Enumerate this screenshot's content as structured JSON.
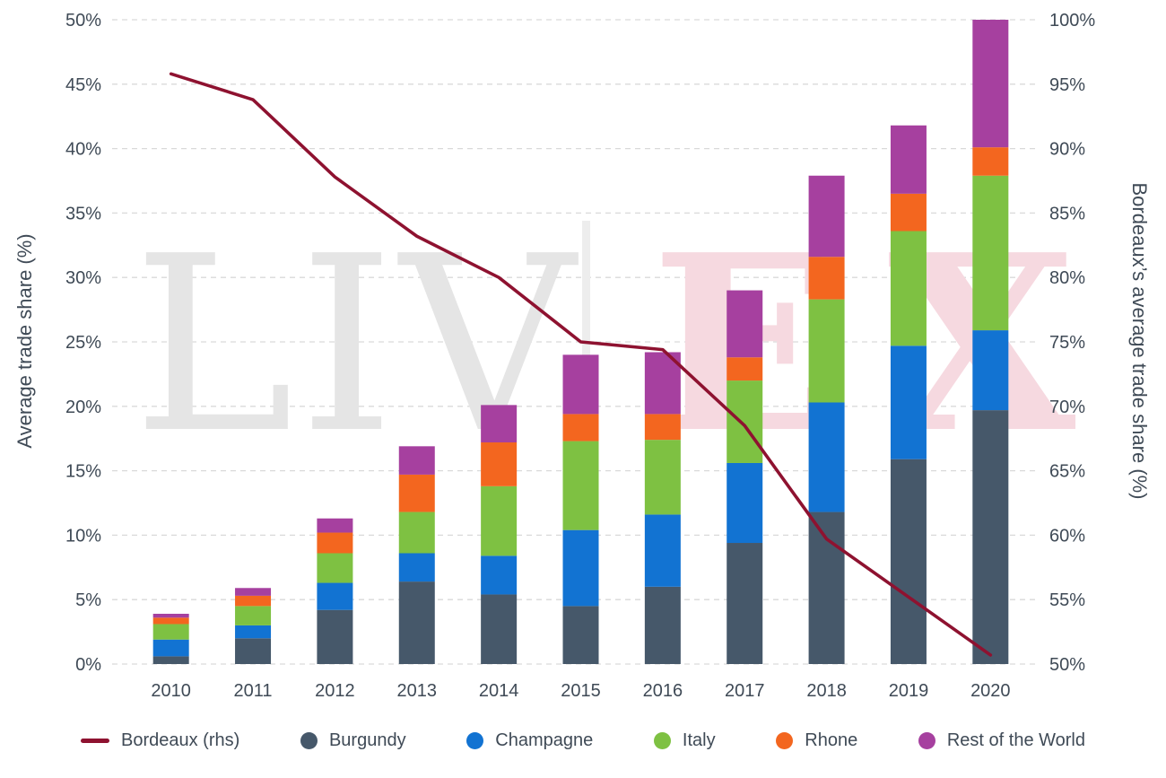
{
  "chart_data": {
    "type": "bar",
    "stacked": true,
    "title": "",
    "categories": [
      "2010",
      "2011",
      "2012",
      "2013",
      "2014",
      "2015",
      "2016",
      "2017",
      "2018",
      "2019",
      "2020"
    ],
    "series": [
      {
        "name": "Burgundy",
        "color": "#46586a",
        "values": [
          0.6,
          2.0,
          4.2,
          6.4,
          5.4,
          4.5,
          6.0,
          9.4,
          11.8,
          15.9,
          19.7
        ]
      },
      {
        "name": "Champagne",
        "color": "#1273d2",
        "values": [
          1.3,
          1.0,
          2.1,
          2.2,
          3.0,
          5.9,
          5.6,
          6.2,
          8.5,
          8.8,
          6.2
        ]
      },
      {
        "name": "Italy",
        "color": "#7ec142",
        "values": [
          1.2,
          1.5,
          2.3,
          3.2,
          5.4,
          6.9,
          5.8,
          6.4,
          8.0,
          8.9,
          12.0
        ]
      },
      {
        "name": "Rhone",
        "color": "#f3661f",
        "values": [
          0.5,
          0.8,
          1.6,
          2.9,
          3.4,
          2.1,
          2.0,
          1.8,
          3.3,
          2.9,
          2.2
        ]
      },
      {
        "name": "Rest of the World",
        "color": "#a6409f",
        "values": [
          0.3,
          0.6,
          1.1,
          2.2,
          2.9,
          4.6,
          4.8,
          5.2,
          6.3,
          5.3,
          9.9
        ]
      }
    ],
    "line_series": {
      "name": "Bordeaux (rhs)",
      "color": "#8e1230",
      "axis": "right",
      "values": [
        95.8,
        93.8,
        87.8,
        83.2,
        80.0,
        75.0,
        74.4,
        68.5,
        59.7,
        55.2,
        50.7
      ]
    },
    "left_axis": {
      "label": "Average trade share (%)",
      "min": 0,
      "max": 50,
      "step": 5,
      "tick_suffix": "%"
    },
    "right_axis": {
      "label": "Bordeaux’s average trade share (%)",
      "min": 50,
      "max": 100,
      "step": 5,
      "tick_suffix": "%"
    },
    "grid": {
      "horizontal": true,
      "style": "dashed",
      "color": "#d9d9d9"
    },
    "legend_position": "bottom"
  },
  "watermark": {
    "left_text": "LIV",
    "right_text": "EX",
    "left_color": "#e5e5e5",
    "right_color": "#f6d9e0",
    "divider_color": "#ededed"
  },
  "styles": {
    "text_color": "#3f4a56",
    "background": "#ffffff"
  }
}
